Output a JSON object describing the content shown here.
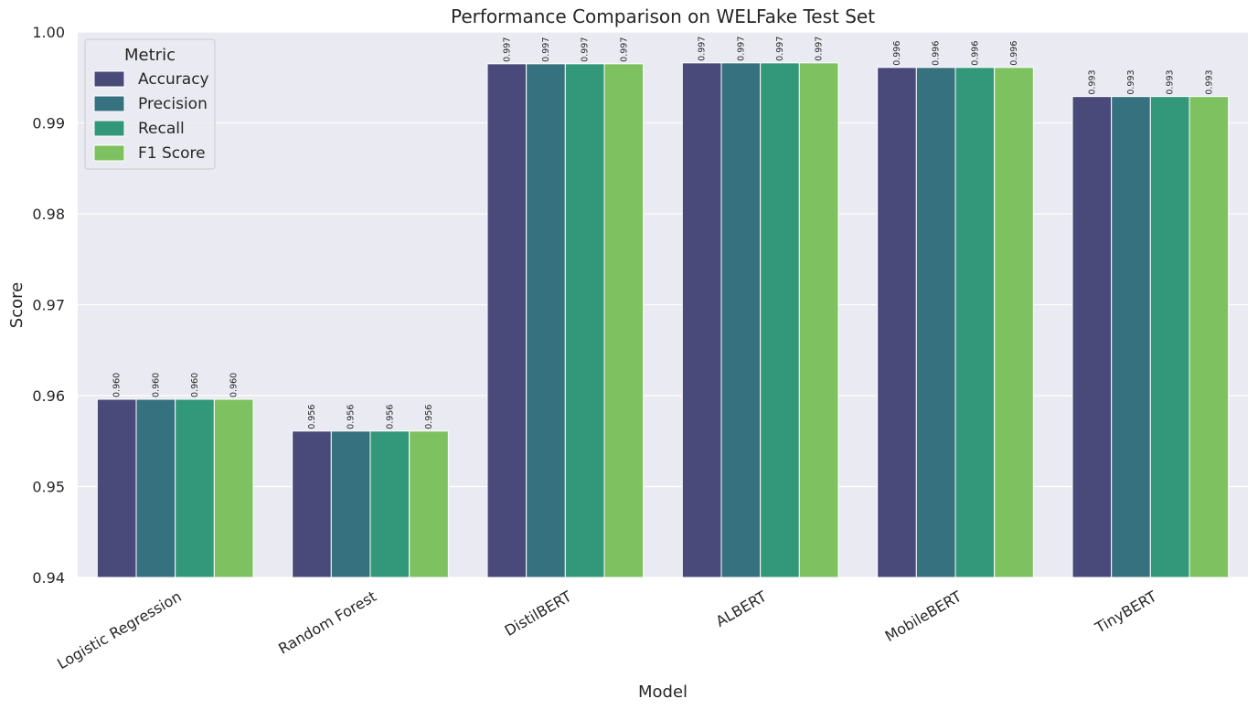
{
  "chart_data": {
    "type": "bar",
    "title": "Performance Comparison on WELFake Test Set",
    "xlabel": "Model",
    "ylabel": "Score",
    "ylim": [
      0.94,
      1.0
    ],
    "yticks": [
      "0.94",
      "0.95",
      "0.96",
      "0.97",
      "0.98",
      "0.99",
      "1.00"
    ],
    "grid": true,
    "legend_title": "Metric",
    "legend_position": "top-left",
    "categories": [
      "Logistic Regression",
      "Random Forest",
      "DistilBERT",
      "ALBERT",
      "MobileBERT",
      "TinyBERT"
    ],
    "series": [
      {
        "name": "Accuracy",
        "color": "#4a4a7a",
        "values": [
          0.9596,
          0.9561,
          0.9965,
          0.9966,
          0.9961,
          0.9929
        ],
        "labels": [
          "0.960",
          "0.956",
          "0.997",
          "0.997",
          "0.996",
          "0.993"
        ]
      },
      {
        "name": "Precision",
        "color": "#36717f",
        "values": [
          0.9596,
          0.9561,
          0.9965,
          0.9966,
          0.9961,
          0.9929
        ],
        "labels": [
          "0.960",
          "0.956",
          "0.997",
          "0.997",
          "0.996",
          "0.993"
        ]
      },
      {
        "name": "Recall",
        "color": "#33977a",
        "values": [
          0.9596,
          0.9561,
          0.9965,
          0.9966,
          0.9961,
          0.9929
        ],
        "labels": [
          "0.960",
          "0.956",
          "0.997",
          "0.997",
          "0.996",
          "0.993"
        ]
      },
      {
        "name": "F1 Score",
        "color": "#7ec160",
        "values": [
          0.9596,
          0.9561,
          0.9965,
          0.9966,
          0.9961,
          0.9929
        ],
        "labels": [
          "0.960",
          "0.956",
          "0.997",
          "0.997",
          "0.996",
          "0.993"
        ]
      }
    ],
    "colors": {
      "plot_background": "#eaeaf2",
      "grid": "#ffffff",
      "bar_edge": "#ffffff"
    }
  }
}
